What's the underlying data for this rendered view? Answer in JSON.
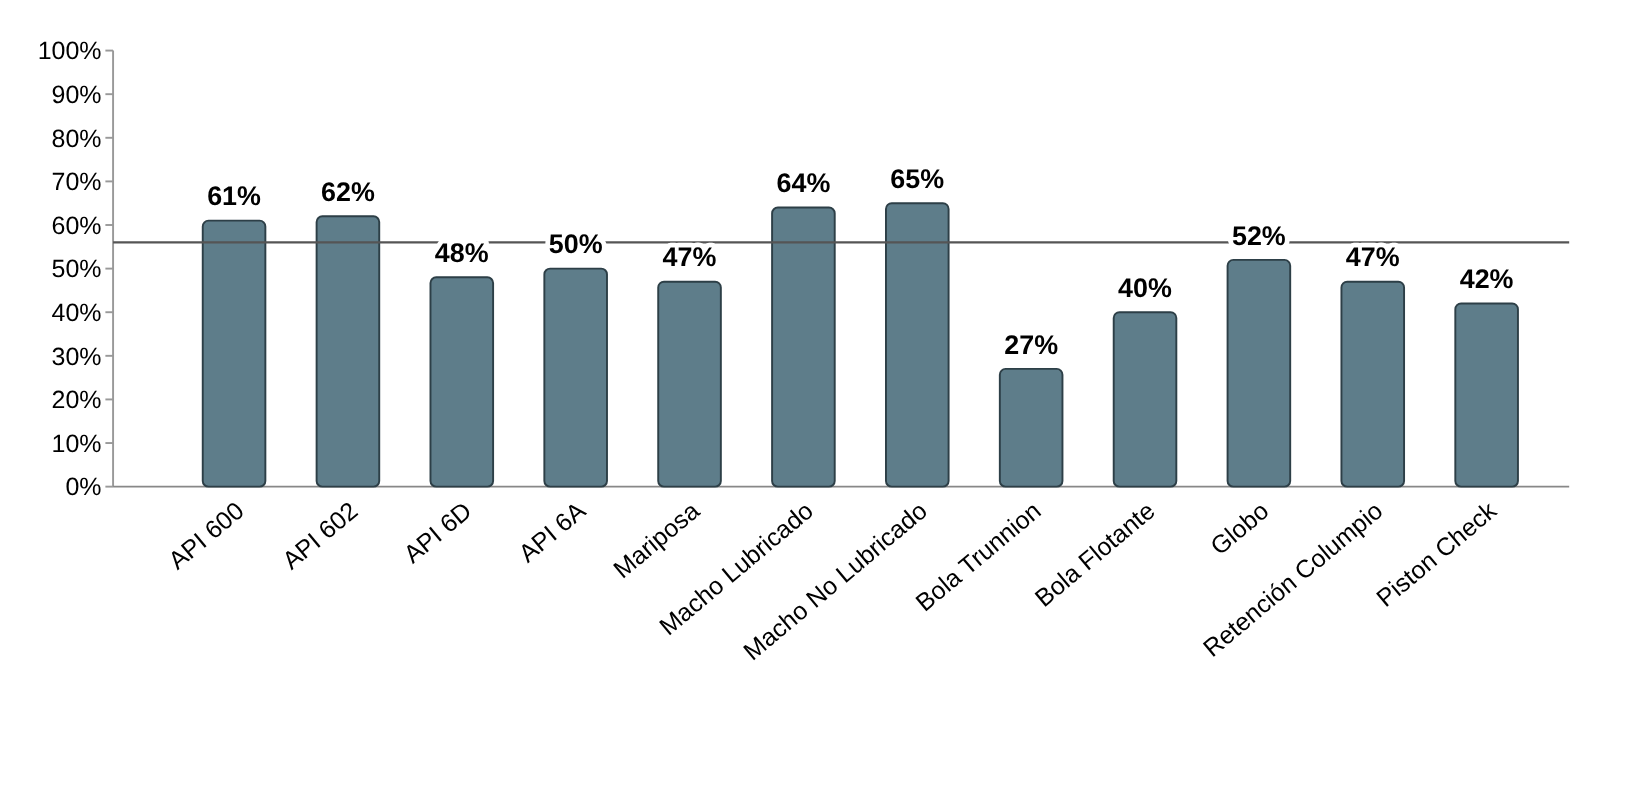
{
  "chart_data": {
    "type": "bar",
    "categories": [
      "API 600",
      "API 602",
      "API 6D",
      "API 6A",
      "Mariposa",
      "Macho Lubricado",
      "Macho No Lubricado",
      "Bola Trunnion",
      "Bola Flotante",
      "Globo",
      "Retención Columpio",
      "Piston Check"
    ],
    "values": [
      61,
      62,
      48,
      50,
      47,
      64,
      65,
      27,
      40,
      52,
      47,
      42
    ],
    "value_labels": [
      "61%",
      "62%",
      "48%",
      "50%",
      "47%",
      "64%",
      "65%",
      "27%",
      "40%",
      "52%",
      "47%",
      "42%"
    ],
    "color": "#5e7d8a",
    "ylim": [
      0,
      100
    ],
    "yticks": [
      {
        "value": 0,
        "label": "0%"
      },
      {
        "value": 10,
        "label": "10%"
      },
      {
        "value": 20,
        "label": "20%"
      },
      {
        "value": 30,
        "label": "30%"
      },
      {
        "value": 40,
        "label": "40%"
      },
      {
        "value": 50,
        "label": "50%"
      },
      {
        "value": 60,
        "label": "60%"
      },
      {
        "value": 70,
        "label": "70%"
      },
      {
        "value": 80,
        "label": "80%"
      },
      {
        "value": 90,
        "label": "90%"
      },
      {
        "value": 100,
        "label": "100%"
      }
    ],
    "ref_lines": [
      {
        "axis": "y",
        "value": 56,
        "color": "#555555"
      }
    ]
  }
}
